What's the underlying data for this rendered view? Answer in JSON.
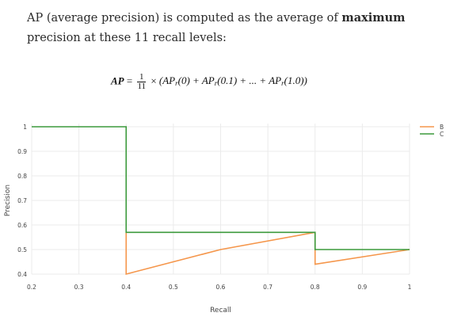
{
  "intro": {
    "text_before": "AP (average precision) is computed as the average of ",
    "bold": "maximum",
    "text_after": " precision at these 11 recall levels:"
  },
  "formula": {
    "lhs": "AP",
    "equals": "=",
    "num": "1",
    "den": "11",
    "times": "×",
    "body": "(AP",
    "t1": "(0) + AP",
    "t2": "(0.1) + ... + AP",
    "t3": "(1.0))",
    "sub": "r"
  },
  "chart_data": {
    "type": "line",
    "xlabel": "Recall",
    "ylabel": "Precision",
    "xlim": [
      0.2,
      1.0
    ],
    "ylim": [
      0.4,
      1.0
    ],
    "xticks": [
      "0.2",
      "0.3",
      "0.4",
      "0.5",
      "0.6",
      "0.7",
      "0.8",
      "0.9",
      "1"
    ],
    "yticks": [
      "0.4",
      "0.5",
      "0.6",
      "0.7",
      "0.8",
      "0.9",
      "1"
    ],
    "grid": true,
    "legend_position": "top-right",
    "series": [
      {
        "name": "B",
        "color": "#f5964b",
        "x": [
          0.4,
          0.4,
          0.6,
          0.8,
          0.8,
          1.0
        ],
        "y": [
          0.57,
          0.4,
          0.5,
          0.57,
          0.44,
          0.5
        ]
      },
      {
        "name": "C",
        "color": "#3c9a3c",
        "x": [
          0.2,
          0.4,
          0.4,
          0.8,
          0.8,
          1.0
        ],
        "y": [
          1.0,
          1.0,
          0.57,
          0.57,
          0.5,
          0.5
        ]
      }
    ]
  }
}
